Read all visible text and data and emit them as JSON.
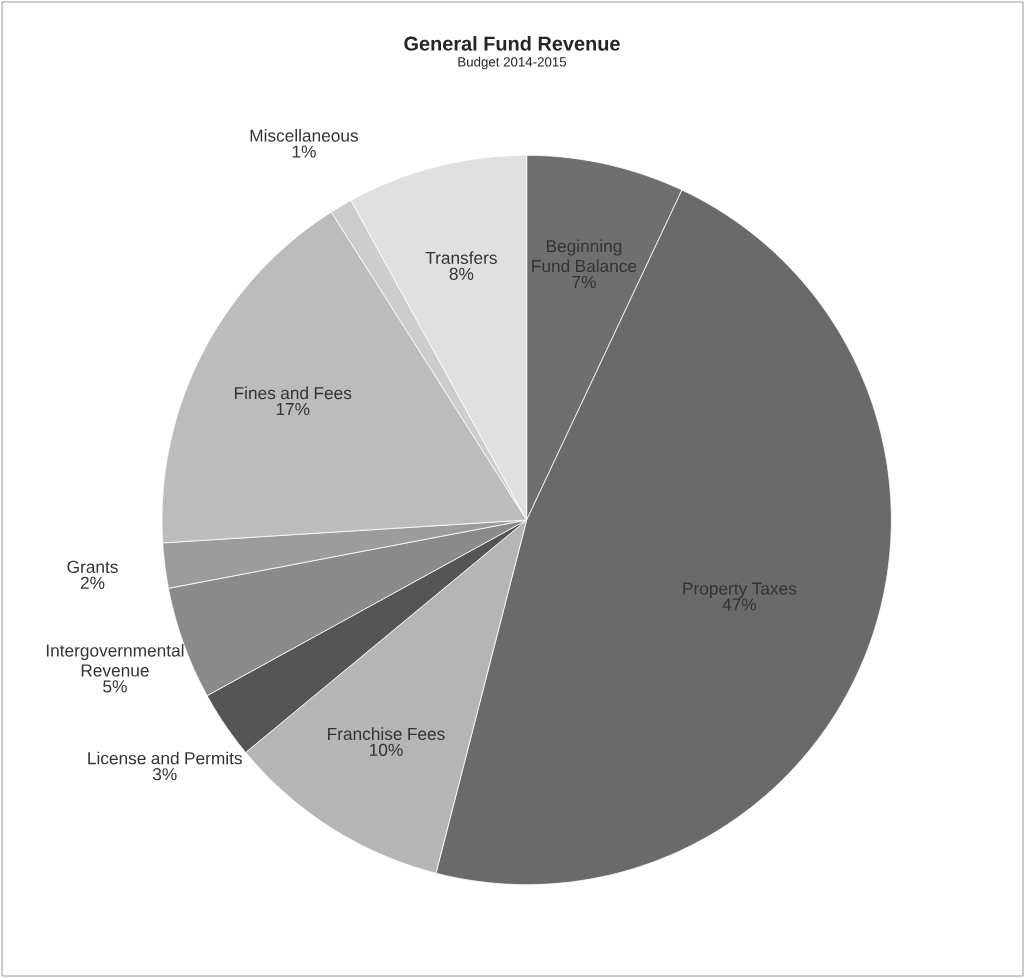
{
  "chart_data": {
    "type": "pie",
    "title": "General Fund Revenue",
    "subtitle": "Budget 2014-2015",
    "categories": [
      "Beginning Fund Balance",
      "Property Taxes",
      "Franchise Fees",
      "License and Permits",
      "Intergovernmental Revenue",
      "Grants",
      "Fines and Fees",
      "Miscellaneous",
      "Transfers"
    ],
    "values": [
      7,
      47,
      10,
      3,
      5,
      2,
      17,
      1,
      8
    ],
    "value_labels": [
      "7%",
      "47%",
      "10%",
      "3%",
      "5%",
      "2%",
      "17%",
      "1%",
      "8%"
    ],
    "colors": [
      "#6f6f6f",
      "#6a6a6a",
      "#b5b5b5",
      "#555555",
      "#8a8a8a",
      "#9c9c9c",
      "#bcbcbc",
      "#cdcdcd",
      "#e0e0e0"
    ]
  }
}
